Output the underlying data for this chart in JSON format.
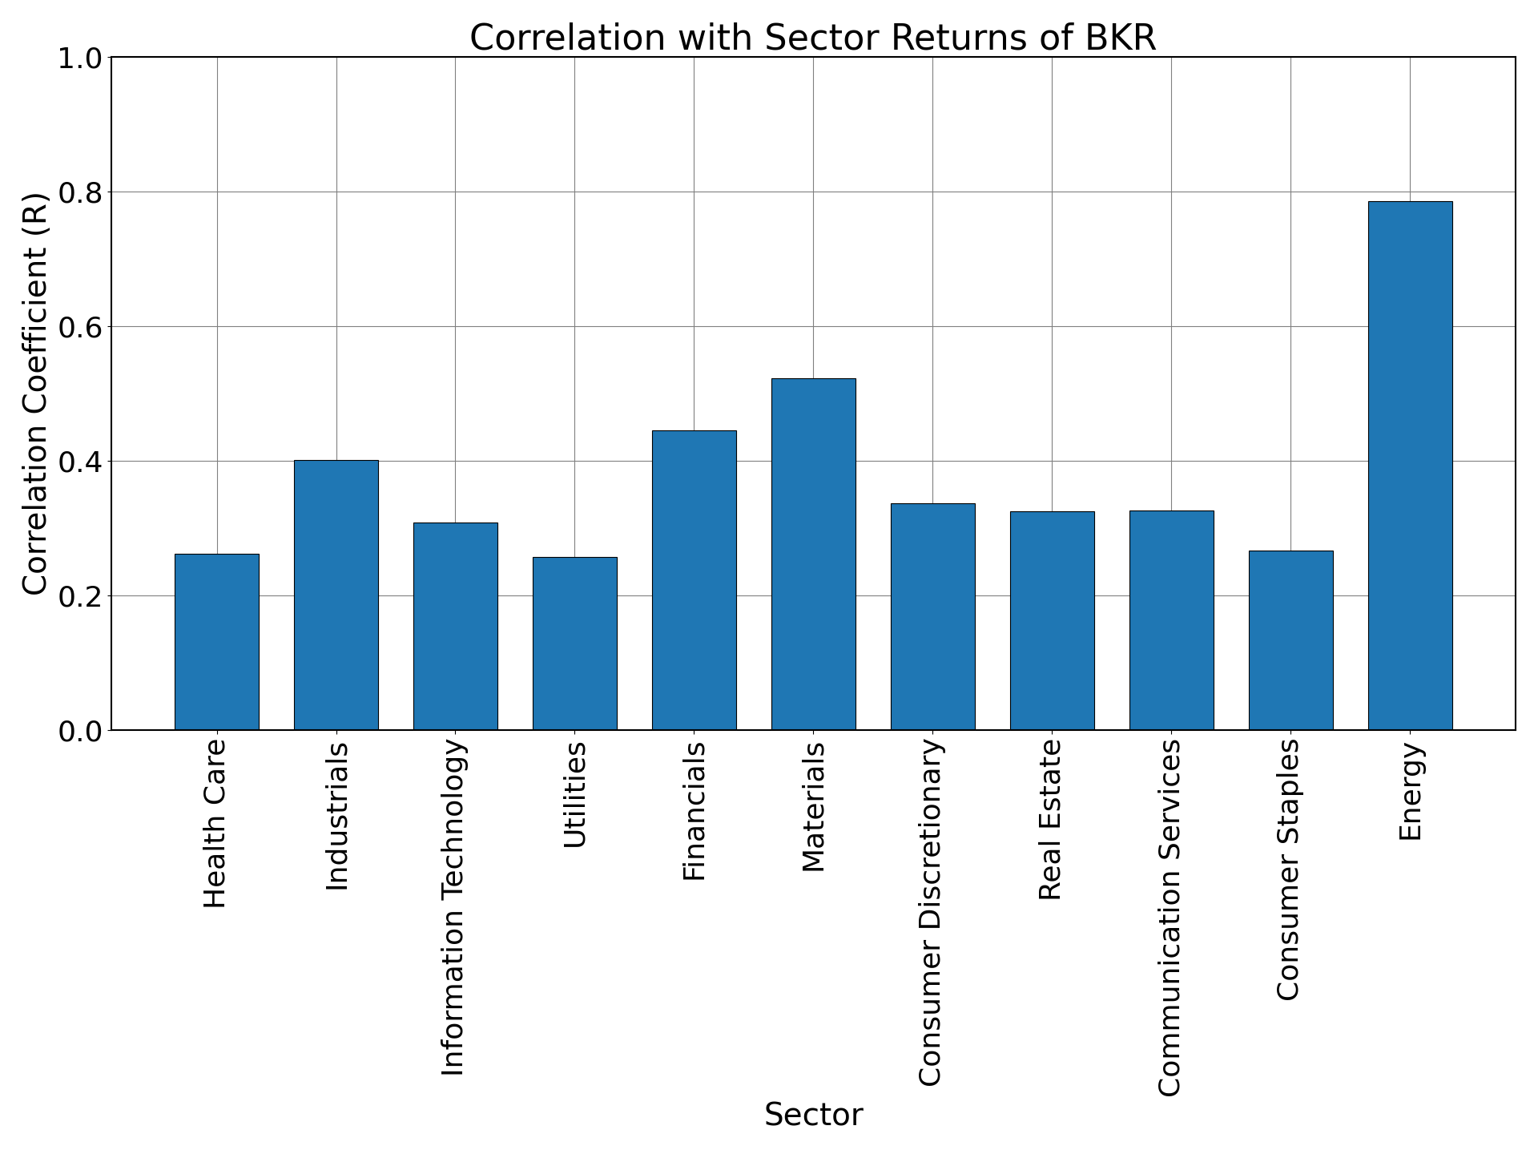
{
  "title": "Correlation with Sector Returns of BKR",
  "xlabel": "Sector",
  "ylabel": "Correlation Coefficient (R)",
  "categories": [
    "Health Care",
    "Industrials",
    "Information Technology",
    "Utilities",
    "Financials",
    "Materials",
    "Consumer Discretionary",
    "Real Estate",
    "Communication Services",
    "Consumer Staples",
    "Energy"
  ],
  "values": [
    0.262,
    0.401,
    0.308,
    0.257,
    0.445,
    0.522,
    0.337,
    0.325,
    0.326,
    0.267,
    0.786
  ],
  "bar_color": "#1f77b4",
  "ylim": [
    0.0,
    1.0
  ],
  "yticks": [
    0.0,
    0.2,
    0.4,
    0.6,
    0.8,
    1.0
  ],
  "title_fontsize": 32,
  "label_fontsize": 28,
  "tick_fontsize": 26,
  "figsize": [
    19.2,
    14.4
  ],
  "dpi": 100
}
